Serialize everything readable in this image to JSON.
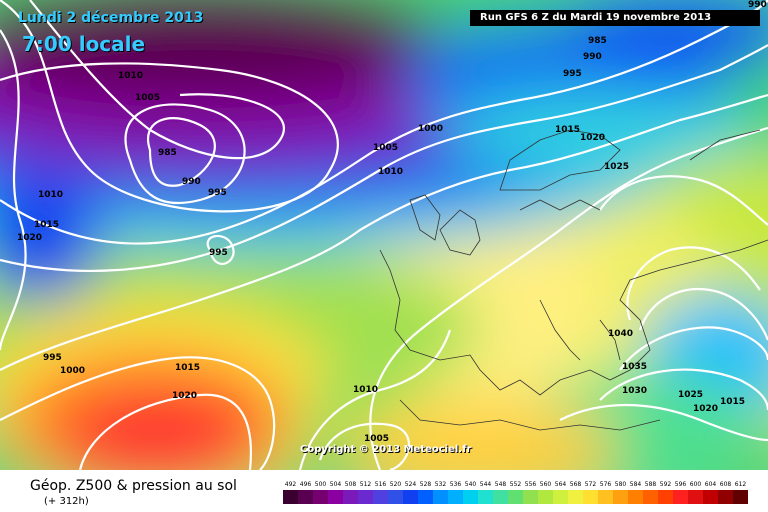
{
  "header": {
    "date_line": "Lundi 2 décembre 2013",
    "time_line": "7:00 locale",
    "run_info": "Run GFS 6 Z du Mardi 19 novembre 2013"
  },
  "copyright": "Copyright © 2013 Meteociel.fr",
  "legend": {
    "title": "Géop. Z500 & pression au sol",
    "subtitle": "(+ 312h)",
    "scale_values": [
      "492",
      "496",
      "500",
      "504",
      "508",
      "512",
      "516",
      "520",
      "524",
      "528",
      "532",
      "536",
      "540",
      "544",
      "548",
      "552",
      "556",
      "560",
      "564",
      "568",
      "572",
      "576",
      "580",
      "584",
      "588",
      "592",
      "596",
      "600",
      "604",
      "608",
      "612"
    ],
    "scale_colors": [
      "#3a0030",
      "#5a0050",
      "#760070",
      "#8a00a0",
      "#7a1ab8",
      "#6a2ad0",
      "#5040e0",
      "#3050e8",
      "#1040f0",
      "#0060ff",
      "#0090ff",
      "#00b0ff",
      "#00d0f0",
      "#20e0d0",
      "#40e0a0",
      "#60e070",
      "#90e050",
      "#b0e840",
      "#d0f040",
      "#f0f040",
      "#ffe030",
      "#ffc020",
      "#ffa010",
      "#ff8000",
      "#ff6000",
      "#ff4000",
      "#ff2020",
      "#e01010",
      "#c00000",
      "#900000",
      "#600000"
    ]
  },
  "isobar_labels": [
    {
      "text": "990"
    },
    {
      "text": "985"
    },
    {
      "text": "990"
    },
    {
      "text": "995"
    },
    {
      "text": "1010"
    },
    {
      "text": "1005"
    },
    {
      "text": "1000"
    },
    {
      "text": "985"
    },
    {
      "text": "990"
    },
    {
      "text": "995"
    },
    {
      "text": "1005"
    },
    {
      "text": "1010"
    },
    {
      "text": "1015"
    },
    {
      "text": "1020"
    },
    {
      "text": "1025"
    },
    {
      "text": "1010"
    },
    {
      "text": "1015"
    },
    {
      "text": "1020"
    },
    {
      "text": "995"
    },
    {
      "text": "995"
    },
    {
      "text": "1000"
    },
    {
      "text": "1015"
    },
    {
      "text": "1020"
    },
    {
      "text": "1010"
    },
    {
      "text": "1005"
    },
    {
      "text": "1040"
    },
    {
      "text": "1035"
    },
    {
      "text": "1030"
    },
    {
      "text": "1025"
    },
    {
      "text": "1020"
    },
    {
      "text": "1015"
    }
  ]
}
